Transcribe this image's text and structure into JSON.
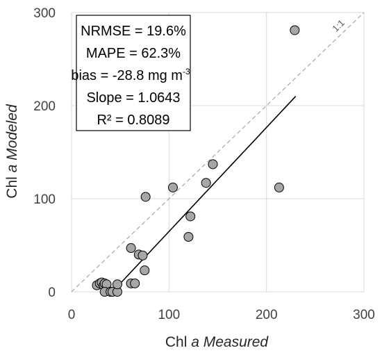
{
  "chart_data": {
    "type": "scatter",
    "title": "",
    "xlabel_prefix": "Chl ",
    "xlabel_italic": "a Measured",
    "ylabel_prefix": "Chl ",
    "ylabel_italic": "a Modeled",
    "xlim": [
      0,
      300
    ],
    "ylim": [
      0,
      300
    ],
    "x_ticks": [
      0,
      100,
      200,
      300
    ],
    "y_ticks": [
      0,
      100,
      200,
      300
    ],
    "x_tick_labels": [
      "0",
      "100",
      "200",
      "300"
    ],
    "y_tick_labels": [
      "0",
      "100",
      "200",
      "300"
    ],
    "grid": true,
    "points": [
      {
        "x": 26,
        "y": 7
      },
      {
        "x": 29,
        "y": 9
      },
      {
        "x": 31,
        "y": 10
      },
      {
        "x": 33,
        "y": 7
      },
      {
        "x": 34,
        "y": 9
      },
      {
        "x": 36,
        "y": 8
      },
      {
        "x": 34,
        "y": 0
      },
      {
        "x": 40,
        "y": 0
      },
      {
        "x": 42,
        "y": 0
      },
      {
        "x": 47,
        "y": 0
      },
      {
        "x": 47,
        "y": 8
      },
      {
        "x": 61,
        "y": 9
      },
      {
        "x": 65,
        "y": 9
      },
      {
        "x": 61,
        "y": 47
      },
      {
        "x": 69,
        "y": 40
      },
      {
        "x": 73,
        "y": 39
      },
      {
        "x": 75,
        "y": 23
      },
      {
        "x": 76,
        "y": 102
      },
      {
        "x": 104,
        "y": 112
      },
      {
        "x": 120,
        "y": 59
      },
      {
        "x": 122,
        "y": 81
      },
      {
        "x": 138,
        "y": 117
      },
      {
        "x": 145,
        "y": 137
      },
      {
        "x": 213,
        "y": 112
      },
      {
        "x": 229,
        "y": 281
      }
    ],
    "regression_line": {
      "x": [
        42,
        230
      ],
      "y": [
        0,
        210
      ]
    },
    "identity_line": {
      "x": [
        0,
        300
      ],
      "y": [
        0,
        300
      ],
      "label": "1:1"
    },
    "stats": {
      "nrmse": "NRMSE = 19.6%",
      "mape": "MAPE = 62.3%",
      "bias_text": "bias = -28.8 mg m",
      "bias_sup": "-3",
      "slope": "Slope = 1.0643",
      "r2": "R² = 0.8089"
    },
    "colors": {
      "marker_fill": "#a6a6a6",
      "marker_stroke": "#000000",
      "regression": "#000000",
      "identity": "#a6a6a6",
      "grid": "#d9d9d9"
    }
  }
}
